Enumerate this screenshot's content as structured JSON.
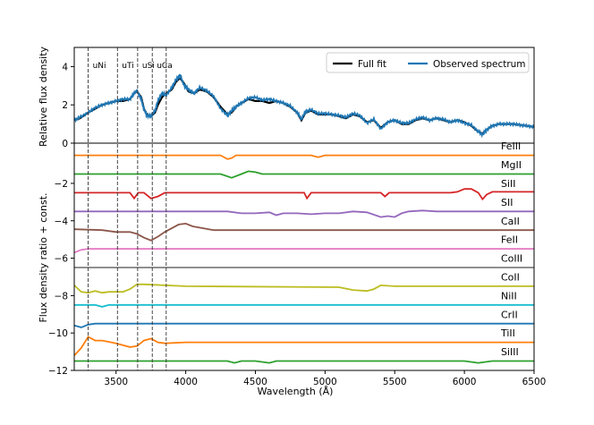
{
  "chart_data": {
    "type": "line",
    "xlabel": "Wavelength (Å)",
    "xlim": [
      3200,
      6500
    ],
    "x_ticks": [
      "3500",
      "4000",
      "4500",
      "5000",
      "5500",
      "6000",
      "6500"
    ],
    "x_tick_values": [
      3500,
      4000,
      4500,
      5000,
      5500,
      6000,
      6500
    ],
    "top_panel": {
      "ylabel": "Relative flux density",
      "ylim": [
        0,
        5
      ],
      "y_ticks": [
        "0",
        "2",
        "4"
      ],
      "y_tick_values": [
        0,
        2,
        4
      ],
      "zero_line": 0,
      "legend": [
        "Full fit",
        "Observed spectrum"
      ],
      "series": [
        {
          "name": "Full fit",
          "color": "#000000",
          "x": [
            3200,
            3240,
            3300,
            3350,
            3400,
            3450,
            3500,
            3550,
            3600,
            3630,
            3650,
            3680,
            3700,
            3720,
            3750,
            3780,
            3800,
            3830,
            3860,
            3900,
            3930,
            3960,
            3990,
            4020,
            4060,
            4100,
            4150,
            4200,
            4250,
            4300,
            4330,
            4360,
            4400,
            4450,
            4500,
            4550,
            4600,
            4650,
            4700,
            4750,
            4800,
            4830,
            4860,
            4900,
            4950,
            5000,
            5050,
            5100,
            5150,
            5200,
            5250,
            5300,
            5350,
            5400,
            5450,
            5500,
            5550,
            5600,
            5650,
            5700,
            5750,
            5800,
            5850,
            5900,
            5950,
            6000,
            6050,
            6100,
            6130,
            6160,
            6200,
            6250,
            6300,
            6350,
            6400,
            6450,
            6500
          ],
          "y": [
            1.2,
            1.3,
            1.6,
            1.8,
            2.0,
            2.1,
            2.2,
            2.2,
            2.3,
            2.6,
            2.7,
            2.4,
            1.8,
            1.5,
            1.4,
            1.6,
            2.0,
            2.4,
            2.6,
            2.8,
            3.2,
            3.4,
            3.1,
            2.7,
            2.6,
            2.8,
            2.7,
            2.4,
            1.9,
            1.5,
            1.6,
            1.9,
            2.1,
            2.3,
            2.2,
            2.2,
            2.1,
            2.2,
            2.1,
            1.9,
            1.6,
            1.2,
            1.6,
            1.7,
            1.5,
            1.5,
            1.5,
            1.4,
            1.3,
            1.5,
            1.4,
            1.1,
            1.2,
            0.8,
            1.1,
            1.2,
            1.0,
            1.0,
            1.2,
            1.3,
            1.2,
            1.3,
            1.2,
            1.1,
            1.2,
            1.1,
            0.9,
            0.6,
            0.5,
            0.7,
            0.9,
            1.0,
            1.0,
            1.0,
            0.95,
            0.9,
            0.85
          ]
        },
        {
          "name": "Observed spectrum",
          "color": "#1f77b4",
          "x": [
            3200,
            3240,
            3300,
            3350,
            3400,
            3450,
            3500,
            3550,
            3600,
            3630,
            3650,
            3680,
            3700,
            3720,
            3750,
            3780,
            3800,
            3830,
            3860,
            3900,
            3930,
            3960,
            3990,
            4020,
            4060,
            4100,
            4150,
            4200,
            4250,
            4300,
            4330,
            4360,
            4400,
            4450,
            4500,
            4550,
            4600,
            4650,
            4700,
            4750,
            4800,
            4830,
            4860,
            4900,
            4950,
            5000,
            5050,
            5100,
            5150,
            5200,
            5250,
            5300,
            5350,
            5400,
            5450,
            5500,
            5550,
            5600,
            5650,
            5700,
            5750,
            5800,
            5850,
            5900,
            5950,
            6000,
            6050,
            6100,
            6130,
            6160,
            6200,
            6250,
            6300,
            6350,
            6400,
            6450,
            6500
          ],
          "y": [
            1.2,
            1.35,
            1.6,
            1.85,
            2.0,
            2.1,
            2.2,
            2.3,
            2.3,
            2.6,
            2.75,
            2.3,
            1.8,
            1.45,
            1.4,
            1.7,
            2.2,
            2.6,
            2.5,
            2.9,
            3.3,
            3.55,
            3.0,
            2.8,
            2.6,
            2.9,
            2.75,
            2.45,
            1.8,
            1.45,
            1.7,
            1.9,
            2.1,
            2.35,
            2.4,
            2.25,
            2.3,
            2.2,
            2.1,
            1.95,
            1.6,
            1.25,
            1.65,
            1.75,
            1.55,
            1.55,
            1.5,
            1.45,
            1.35,
            1.55,
            1.45,
            1.05,
            1.25,
            0.75,
            1.1,
            1.2,
            1.05,
            1.05,
            1.25,
            1.35,
            1.2,
            1.3,
            1.25,
            1.1,
            1.2,
            1.05,
            0.95,
            0.6,
            0.45,
            0.7,
            0.9,
            1.0,
            1.0,
            1.0,
            0.95,
            0.9,
            0.85
          ]
        }
      ]
    },
    "bottom_panel": {
      "ylabel": "Flux density ratio + const.",
      "ylim": [
        -12,
        0.15
      ],
      "y_ticks": [
        "−2",
        "−4",
        "−6",
        "−8",
        "−10",
        "−12"
      ],
      "y_tick_values": [
        -2,
        -4,
        -6,
        -8,
        -10,
        -12
      ],
      "series": [
        {
          "name": "FeIII",
          "color": "#ff7f0e",
          "base": -0.5,
          "x": [
            3200,
            4250,
            4300,
            4330,
            4360,
            4400,
            4900,
            4950,
            5000,
            6500
          ],
          "y": [
            -0.5,
            -0.5,
            -0.7,
            -0.65,
            -0.5,
            -0.5,
            -0.5,
            -0.6,
            -0.5,
            -0.5
          ]
        },
        {
          "name": "MgII",
          "color": "#2ca02c",
          "base": -1.5,
          "x": [
            3200,
            4250,
            4330,
            4400,
            4450,
            4500,
            4550,
            6500
          ],
          "y": [
            -1.5,
            -1.5,
            -1.7,
            -1.5,
            -1.35,
            -1.4,
            -1.5,
            -1.5
          ]
        },
        {
          "name": "SiII",
          "color": "#d62728",
          "base": -2.5,
          "x": [
            3200,
            3600,
            3630,
            3660,
            3700,
            3750,
            3800,
            3850,
            4850,
            4870,
            4900,
            5400,
            5430,
            5460,
            5900,
            5950,
            6000,
            6050,
            6100,
            6130,
            6160,
            6200,
            6500
          ],
          "y": [
            -2.5,
            -2.5,
            -2.8,
            -2.5,
            -2.5,
            -2.8,
            -2.7,
            -2.5,
            -2.5,
            -2.8,
            -2.5,
            -2.5,
            -2.7,
            -2.5,
            -2.5,
            -2.45,
            -2.3,
            -2.3,
            -2.5,
            -2.85,
            -2.6,
            -2.45,
            -2.45
          ]
        },
        {
          "name": "SII",
          "color": "#9467bd",
          "base": -3.5,
          "x": [
            3200,
            4300,
            4400,
            4500,
            4600,
            4650,
            4700,
            4800,
            4900,
            5000,
            5100,
            5200,
            5300,
            5400,
            5450,
            5500,
            5550,
            5600,
            5700,
            5800,
            6500
          ],
          "y": [
            -3.5,
            -3.5,
            -3.6,
            -3.6,
            -3.55,
            -3.7,
            -3.6,
            -3.6,
            -3.65,
            -3.6,
            -3.6,
            -3.5,
            -3.55,
            -3.8,
            -3.75,
            -3.8,
            -3.6,
            -3.5,
            -3.45,
            -3.5,
            -3.5
          ]
        },
        {
          "name": "CaII",
          "color": "#8c564b",
          "base": -4.5,
          "x": [
            3200,
            3400,
            3500,
            3600,
            3650,
            3700,
            3750,
            3800,
            3850,
            3900,
            3950,
            4000,
            4050,
            4200,
            6500
          ],
          "y": [
            -4.45,
            -4.5,
            -4.6,
            -4.6,
            -4.7,
            -4.9,
            -5.05,
            -4.85,
            -4.6,
            -4.4,
            -4.2,
            -4.15,
            -4.3,
            -4.5,
            -4.5
          ]
        },
        {
          "name": "FeII",
          "color": "#e377c2",
          "base": -5.5,
          "x": [
            3200,
            3250,
            3300,
            3400,
            6500
          ],
          "y": [
            -5.7,
            -5.55,
            -5.5,
            -5.5,
            -5.5
          ]
        },
        {
          "name": "CoIII",
          "color": "#7f7f7f",
          "base": -6.5,
          "x": [
            3200,
            6500
          ],
          "y": [
            -6.5,
            -6.5
          ]
        },
        {
          "name": "CoII",
          "color": "#bcbd22",
          "base": -7.5,
          "x": [
            3200,
            3250,
            3300,
            3350,
            3400,
            3450,
            3500,
            3550,
            3600,
            3650,
            3700,
            4000,
            5100,
            5200,
            5300,
            5350,
            5400,
            5500,
            6500
          ],
          "y": [
            -7.45,
            -7.8,
            -7.85,
            -7.75,
            -7.85,
            -7.8,
            -7.8,
            -7.8,
            -7.65,
            -7.4,
            -7.4,
            -7.5,
            -7.55,
            -7.7,
            -7.75,
            -7.65,
            -7.45,
            -7.5,
            -7.5
          ]
        },
        {
          "name": "NiII",
          "color": "#17becf",
          "base": -8.5,
          "x": [
            3200,
            3350,
            3400,
            3450,
            3500,
            6500
          ],
          "y": [
            -8.5,
            -8.5,
            -8.6,
            -8.5,
            -8.5,
            -8.5
          ]
        },
        {
          "name": "CrII",
          "color": "#1f77b4",
          "base": -9.5,
          "x": [
            3200,
            3250,
            3300,
            3350,
            3400,
            6500
          ],
          "y": [
            -9.6,
            -9.7,
            -9.55,
            -9.5,
            -9.5,
            -9.5
          ]
        },
        {
          "name": "TiII",
          "color": "#ff7f0e",
          "base": -10.5,
          "x": [
            3200,
            3250,
            3300,
            3350,
            3400,
            3500,
            3600,
            3650,
            3700,
            3750,
            3800,
            3850,
            4000,
            6500
          ],
          "y": [
            -11.2,
            -10.8,
            -10.2,
            -10.4,
            -10.4,
            -10.55,
            -10.75,
            -10.7,
            -10.4,
            -10.3,
            -10.5,
            -10.55,
            -10.5,
            -10.5
          ]
        },
        {
          "name": "SiIII",
          "color": "#2ca02c",
          "base": -11.5,
          "x": [
            3200,
            4300,
            4350,
            4400,
            4500,
            4600,
            4650,
            4700,
            6000,
            6100,
            6200,
            6500
          ],
          "y": [
            -11.5,
            -11.5,
            -11.6,
            -11.5,
            -11.5,
            -11.6,
            -11.5,
            -11.5,
            -11.5,
            -11.6,
            -11.5,
            -11.5
          ]
        }
      ]
    },
    "vertical_markers": [
      {
        "label": "uNi",
        "x": 3300
      },
      {
        "label": "uTi",
        "x": 3510
      },
      {
        "label": "uSi",
        "x": 3655
      },
      {
        "label": "uCa",
        "x": 3760
      },
      {
        "label": "",
        "x": 3860
      }
    ]
  }
}
